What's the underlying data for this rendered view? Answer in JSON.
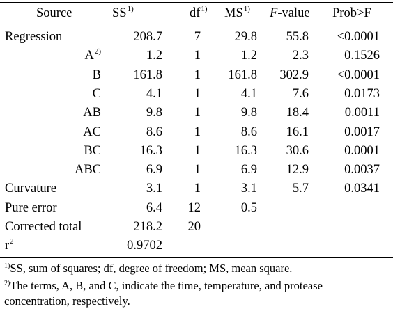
{
  "table": {
    "headers": {
      "source": "Source",
      "ss": "SS",
      "ss_mark": "1)",
      "df": "df",
      "df_mark": "1)",
      "ms": "MS",
      "ms_mark": "1)",
      "f_italic": "F",
      "f_rest": "-value",
      "prob": "Prob>F"
    },
    "rows": [
      {
        "source": "Regression",
        "mark": "",
        "ss": "208.7",
        "df": "7",
        "ms": "29.8",
        "f": "55.8",
        "prob": "<0.0001",
        "indent": false
      },
      {
        "source": "A",
        "mark": "2)",
        "ss": "1.2",
        "df": "1",
        "ms": "1.2",
        "f": "2.3",
        "prob": "0.1526",
        "indent": true
      },
      {
        "source": "B",
        "mark": "",
        "ss": "161.8",
        "df": "1",
        "ms": "161.8",
        "f": "302.9",
        "prob": "<0.0001",
        "indent": true
      },
      {
        "source": "C",
        "mark": "",
        "ss": "4.1",
        "df": "1",
        "ms": "4.1",
        "f": "7.6",
        "prob": "0.0173",
        "indent": true
      },
      {
        "source": "AB",
        "mark": "",
        "ss": "9.8",
        "df": "1",
        "ms": "9.8",
        "f": "18.4",
        "prob": "0.0011",
        "indent": true
      },
      {
        "source": "AC",
        "mark": "",
        "ss": "8.6",
        "df": "1",
        "ms": "8.6",
        "f": "16.1",
        "prob": "0.0017",
        "indent": true
      },
      {
        "source": "BC",
        "mark": "",
        "ss": "16.3",
        "df": "1",
        "ms": "16.3",
        "f": "30.6",
        "prob": "0.0001",
        "indent": true
      },
      {
        "source": "ABC",
        "mark": "",
        "ss": "6.9",
        "df": "1",
        "ms": "6.9",
        "f": "12.9",
        "prob": "0.0037",
        "indent": true
      },
      {
        "source": "Curvature",
        "mark": "",
        "ss": "3.1",
        "df": "1",
        "ms": "3.1",
        "f": "5.7",
        "prob": "0.0341",
        "indent": false
      },
      {
        "source": "Pure error",
        "mark": "",
        "ss": "6.4",
        "df": "12",
        "ms": "0.5",
        "f": "",
        "prob": "",
        "indent": false
      },
      {
        "source": "Corrected total",
        "mark": "",
        "ss": "218.2",
        "df": "20",
        "ms": "",
        "f": "",
        "prob": "",
        "indent": false
      },
      {
        "source": "r",
        "mark": "2",
        "ss": "0.9702",
        "df": "",
        "ms": "",
        "f": "",
        "prob": "",
        "indent": false
      }
    ]
  },
  "footnotes": [
    {
      "mark": "1)",
      "text": "SS, sum of squares; df, degree of freedom; MS, mean square."
    },
    {
      "mark": "2)",
      "text": "The terms, A, B, and C, indicate the time, temperature, and protease"
    },
    {
      "mark": "",
      "text": "concentration, respectively."
    }
  ]
}
